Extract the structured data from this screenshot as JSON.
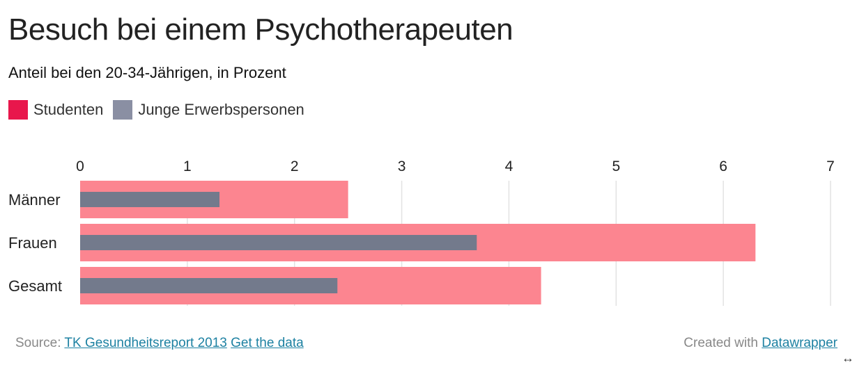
{
  "header": {
    "title": "Besuch bei einem Psychotherapeuten",
    "subtitle": "Anteil bei den 20-34-Jährigen, in Prozent"
  },
  "legend": [
    {
      "label": "Studenten",
      "color": "#e8174c"
    },
    {
      "label": "Junge Erwerbspersonen",
      "color": "#8a8fa3"
    }
  ],
  "chart_data": {
    "type": "bar",
    "orientation": "horizontal",
    "categories": [
      "Männer",
      "Frauen",
      "Gesamt"
    ],
    "series": [
      {
        "name": "Studenten",
        "values": [
          2.5,
          6.3,
          4.3
        ],
        "color": "#fc8590"
      },
      {
        "name": "Junge Erwerbspersonen",
        "values": [
          1.3,
          3.7,
          2.4
        ],
        "color": "#737a8c"
      }
    ],
    "xlim": [
      0,
      7
    ],
    "ticks": [
      0,
      1,
      2,
      3,
      4,
      5,
      6,
      7
    ],
    "grid": true,
    "legend_position": "top-left"
  },
  "footer": {
    "source_prefix": "Source:",
    "source_link": "TK Gesundheitsreport 2013",
    "data_link": "Get the data",
    "created_prefix": "Created with",
    "created_link": "Datawrapper"
  },
  "icons": {
    "resize": "resize-arrows-icon"
  }
}
